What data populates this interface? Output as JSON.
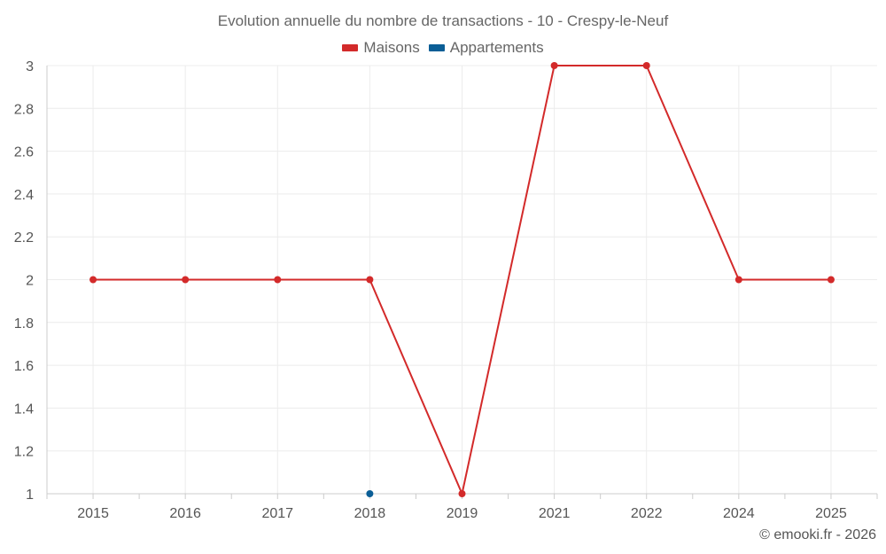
{
  "chart_data": {
    "type": "line",
    "title": "Evolution annuelle du nombre de transactions - 10 - Crespy-le-Neuf",
    "categories": [
      "2015",
      "2016",
      "2017",
      "2018",
      "2019",
      "2021",
      "2022",
      "2024",
      "2025"
    ],
    "series": [
      {
        "name": "Maisons",
        "color": "#d32a2a",
        "values": [
          2,
          2,
          2,
          2,
          1,
          3,
          3,
          2,
          2
        ]
      },
      {
        "name": "Appartements",
        "color": "#0b5e96",
        "values": [
          null,
          null,
          null,
          1,
          null,
          null,
          null,
          null,
          null
        ]
      }
    ],
    "yticks": [
      "1",
      "1.2",
      "1.4",
      "1.6",
      "1.8",
      "2",
      "2.2",
      "2.4",
      "2.6",
      "2.8",
      "3"
    ],
    "ylim": [
      1,
      3
    ],
    "xlabel": "",
    "ylabel": "",
    "grid": true,
    "legend_position": "top-center"
  },
  "credit": "© emooki.fr - 2026"
}
